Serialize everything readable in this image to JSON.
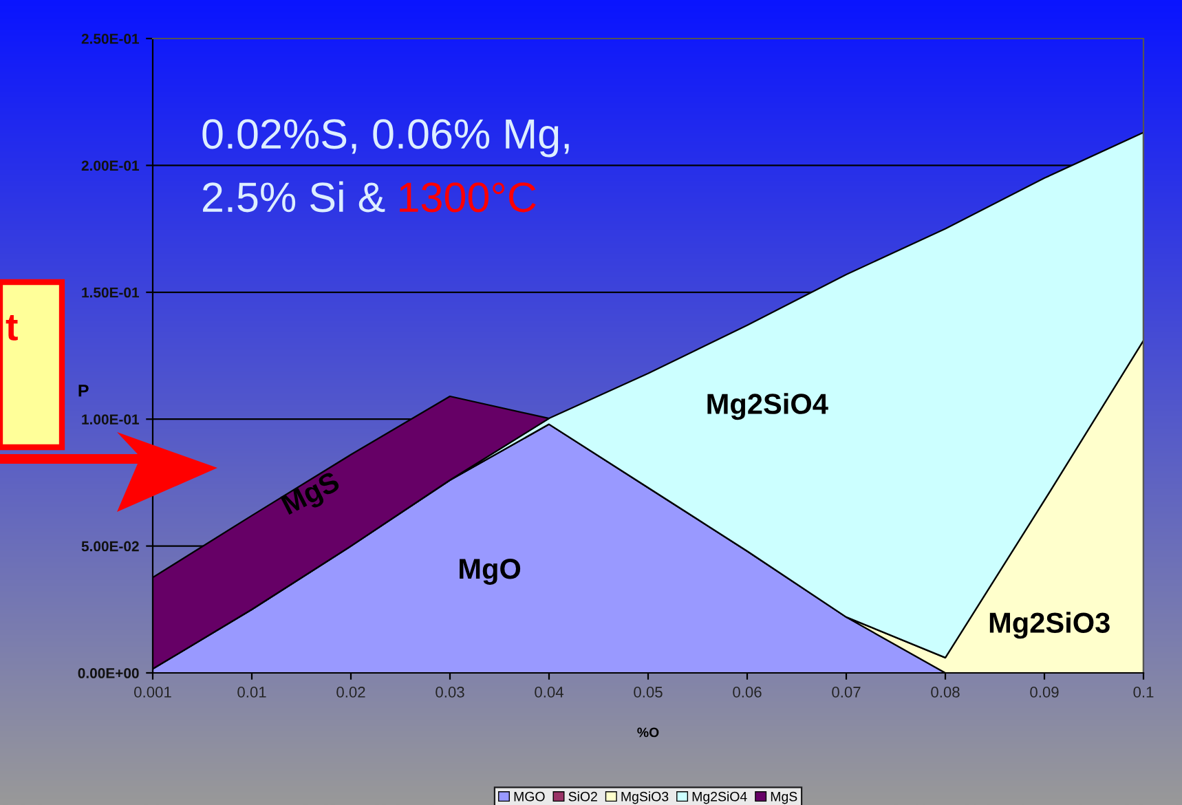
{
  "chart_data": {
    "type": "area",
    "stacked": true,
    "xlabel": "%O",
    "ylabel": "P",
    "categories": [
      "0.001",
      "0.01",
      "0.02",
      "0.03",
      "0.04",
      "0.05",
      "0.06",
      "0.07",
      "0.08",
      "0.09",
      "0.1"
    ],
    "series": [
      {
        "name": "MGO",
        "color": "#9999ff",
        "values": [
          0.0016,
          0.025,
          0.05,
          0.076,
          0.098,
          0.073,
          0.048,
          0.022,
          0,
          0,
          0
        ]
      },
      {
        "name": "SiO2",
        "color": "#993366",
        "values": [
          null,
          null,
          null,
          null,
          null,
          null,
          null,
          null,
          null,
          null,
          null
        ]
      },
      {
        "name": "MgSiO3",
        "color": "#ffffcc",
        "values": [
          0,
          0,
          0,
          0,
          0,
          0,
          0,
          0,
          0.006,
          0.068,
          0.131
        ]
      },
      {
        "name": "Mg2SiO4",
        "color": "#ccffff",
        "values": [
          0,
          0,
          0,
          0,
          0.0023,
          0.045,
          0.089,
          0.135,
          0.169,
          0.127,
          0.082
        ]
      },
      {
        "name": "MgS",
        "color": "#660066",
        "values": [
          0.036,
          0.037,
          0.036,
          0.033,
          0,
          null,
          null,
          null,
          null,
          null,
          null
        ]
      }
    ],
    "ylim": [
      0,
      0.25
    ],
    "yticks": [
      {
        "value": 0,
        "label": "0.00E+00"
      },
      {
        "value": 0.05,
        "label": "5.00E-02"
      },
      {
        "value": 0.1,
        "label": "1.00E-01"
      },
      {
        "value": 0.15,
        "label": "1.50E-01"
      },
      {
        "value": 0.2,
        "label": "2.00E-01"
      },
      {
        "value": 0.25,
        "label": "2.50E-01"
      }
    ],
    "grid": "y",
    "legend": "bottom",
    "annotations": [
      "0.02%S, 0.06% Mg,",
      "2.5% Si & ",
      "1300°C",
      "t",
      "MgS",
      "MgO",
      "Mg2SiO4",
      "Mg2SiO3"
    ]
  }
}
